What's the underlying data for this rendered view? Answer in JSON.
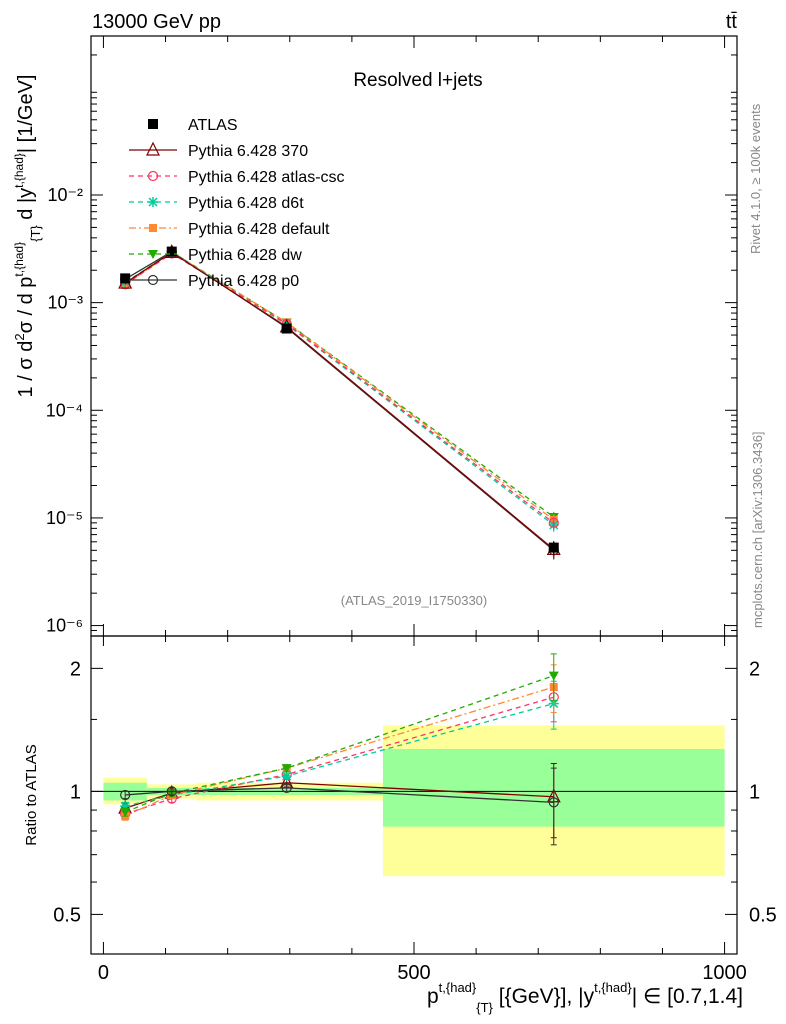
{
  "header": {
    "energy": "13000 GeV pp",
    "process": "tt̄",
    "analysis_title": "Resolved l+jets",
    "watermark": "(ATLAS_2019_I1750330)",
    "rivet_label": "Rivet 4.1.0, ≥ 100k events",
    "mcplots_label": "mcplots.cern.ch [arXiv:1306.3436]"
  },
  "axes": {
    "main_ylabel": "1 / σ d²σ / d p_T^{t,{had}} d |y^{t,{had}}| [1/GeV]",
    "ratio_ylabel": "Ratio to ATLAS",
    "xlabel_text": "p_T^{t,{had}} [{GeV}], |y^{t,{had}}| ∈ [0.7,1.4]",
    "x_ticks": [
      "0",
      "500",
      "1000"
    ],
    "main_y_ticks": [
      "10⁻⁶",
      "10⁻⁵",
      "10⁻⁴",
      "10⁻³",
      "10⁻²"
    ],
    "ratio_y_ticks": [
      "0.5",
      "1",
      "2"
    ]
  },
  "colors": {
    "ATLAS": "#000000",
    "Pythia 6.428 370": "#7f0000",
    "Pythia 6.428 atlas-csc": "#ff3366",
    "Pythia 6.428 d6t": "#00cc99",
    "Pythia 6.428 default": "#ff8833",
    "Pythia 6.428 dw": "#22aa00",
    "Pythia 6.428 p0": "#333333",
    "band_stat": "#99ff99",
    "band_total": "#ffff99"
  },
  "chart_data": {
    "type": "line",
    "title": "Resolved l+jets",
    "xlabel": "p_T^{t,{had}} [GeV], |y^{t,{had}}| ∈ [0.7,1.4]",
    "ylabel": "1 / σ d²σ / d p_T d |y| [1/GeV]",
    "xlim": [
      -20,
      1020
    ],
    "ylim": [
      8e-07,
      0.3
    ],
    "ratio_ylim": [
      0.4,
      2.4
    ],
    "yscale": "log",
    "bins": [
      [
        0,
        70
      ],
      [
        70,
        150
      ],
      [
        150,
        450
      ],
      [
        450,
        1000
      ]
    ],
    "x": [
      35,
      110,
      295,
      725
    ],
    "series": [
      {
        "name": "ATLAS",
        "style": "data",
        "marker": "square",
        "values": [
          0.00168,
          0.00298,
          0.000575,
          5.3e-06
        ],
        "errors": [
          5e-05,
          7e-05,
          2e-05,
          8e-07
        ]
      },
      {
        "name": "Pythia 6.428 370",
        "style": "solid",
        "marker": "triangle",
        "values": [
          0.00152,
          0.00293,
          0.000595,
          5.1e-06
        ],
        "errors": [
          3e-05,
          5e-05,
          1e-05,
          9e-07
        ]
      },
      {
        "name": "Pythia 6.428 atlas-csc",
        "style": "dashed",
        "marker": "circle-open",
        "values": [
          0.00148,
          0.00286,
          0.000635,
          9e-06
        ],
        "errors": [
          3e-05,
          5e-05,
          1e-05,
          1.2e-06
        ]
      },
      {
        "name": "Pythia 6.428 d6t",
        "style": "dashed",
        "marker": "star",
        "values": [
          0.00154,
          0.00293,
          0.000625,
          8.6e-06
        ],
        "errors": [
          3e-05,
          5e-05,
          1e-05,
          1.2e-06
        ]
      },
      {
        "name": "Pythia 6.428 default",
        "style": "dashdot",
        "marker": "square-small",
        "values": [
          0.00146,
          0.00293,
          0.000655,
          9.6e-06
        ],
        "errors": [
          3e-05,
          5e-05,
          1e-05,
          1.2e-06
        ]
      },
      {
        "name": "Pythia 6.428 dw",
        "style": "dashed",
        "marker": "triangle-down",
        "values": [
          0.0015,
          0.00295,
          0.000655,
          1.02e-05
        ],
        "errors": [
          3e-05,
          5e-05,
          1e-05,
          1.2e-06
        ]
      },
      {
        "name": "Pythia 6.428 p0",
        "style": "solid",
        "marker": "circle-open",
        "values": [
          0.00165,
          0.00298,
          0.000585,
          5e-06
        ],
        "errors": [
          3e-05,
          5e-05,
          1e-05,
          9e-07
        ]
      }
    ],
    "ratio": {
      "band_stat": [
        [
          0.95,
          1.05
        ],
        [
          0.98,
          1.02
        ],
        [
          0.98,
          1.02
        ],
        [
          0.82,
          1.27
        ]
      ],
      "band_total": [
        [
          0.93,
          1.08
        ],
        [
          0.96,
          1.04
        ],
        [
          0.95,
          1.05
        ],
        [
          0.62,
          1.45
        ]
      ],
      "series": [
        {
          "name": "Pythia 6.428 370",
          "values": [
            0.91,
            0.99,
            1.05,
            0.97
          ],
          "errors": [
            0.02,
            0.02,
            0.02,
            0.2
          ]
        },
        {
          "name": "Pythia 6.428 atlas-csc",
          "values": [
            0.88,
            0.96,
            1.1,
            1.7
          ],
          "errors": [
            0.02,
            0.02,
            0.02,
            0.22
          ]
        },
        {
          "name": "Pythia 6.428 d6t",
          "values": [
            0.92,
            0.98,
            1.09,
            1.64
          ],
          "errors": [
            0.02,
            0.02,
            0.02,
            0.22
          ]
        },
        {
          "name": "Pythia 6.428 default",
          "values": [
            0.87,
            0.98,
            1.14,
            1.8
          ],
          "errors": [
            0.02,
            0.02,
            0.02,
            0.24
          ]
        },
        {
          "name": "Pythia 6.428 dw",
          "values": [
            0.89,
            0.99,
            1.14,
            1.92
          ],
          "errors": [
            0.02,
            0.02,
            0.02,
            0.25
          ]
        },
        {
          "name": "Pythia 6.428 p0",
          "values": [
            0.98,
            1.0,
            1.02,
            0.94
          ],
          "errors": [
            0.02,
            0.02,
            0.02,
            0.2
          ]
        }
      ]
    }
  }
}
